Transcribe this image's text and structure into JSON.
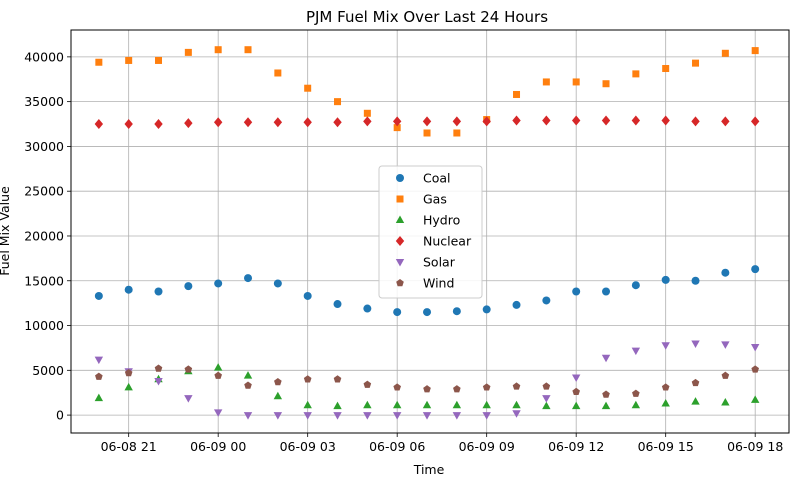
{
  "chart_data": {
    "type": "scatter",
    "title": "PJM Fuel Mix Over Last 24 Hours",
    "xlabel": "Time",
    "ylabel": "Fuel Mix Value",
    "x": [
      "2024-06-08 20:00",
      "2024-06-08 21:00",
      "2024-06-08 22:00",
      "2024-06-08 23:00",
      "2024-06-09 00:00",
      "2024-06-09 01:00",
      "2024-06-09 02:00",
      "2024-06-09 03:00",
      "2024-06-09 04:00",
      "2024-06-09 05:00",
      "2024-06-09 06:00",
      "2024-06-09 07:00",
      "2024-06-09 08:00",
      "2024-06-09 09:00",
      "2024-06-09 10:00",
      "2024-06-09 11:00",
      "2024-06-09 12:00",
      "2024-06-09 13:00",
      "2024-06-09 14:00",
      "2024-06-09 15:00",
      "2024-06-09 16:00",
      "2024-06-09 17:00",
      "2024-06-09 18:00"
    ],
    "xlim": [
      "2024-06-08 19:04",
      "2024-06-09 19:08"
    ],
    "xticks": [
      "2024-06-08 21:00",
      "2024-06-09 00:00",
      "2024-06-09 03:00",
      "2024-06-09 06:00",
      "2024-06-09 09:00",
      "2024-06-09 12:00",
      "2024-06-09 15:00",
      "2024-06-09 18:00"
    ],
    "xtick_labels": [
      "06-08 21",
      "06-09 00",
      "06-09 03",
      "06-09 06",
      "06-09 09",
      "06-09 12",
      "06-09 15",
      "06-09 18"
    ],
    "ylim": [
      -2000,
      43000
    ],
    "yticks": [
      0,
      5000,
      10000,
      15000,
      20000,
      25000,
      30000,
      35000,
      40000
    ],
    "ytick_labels": [
      "0",
      "5000",
      "10000",
      "15000",
      "20000",
      "25000",
      "30000",
      "35000",
      "40000"
    ],
    "grid": true,
    "legend_position": "center",
    "series": [
      {
        "name": "Coal",
        "color": "#1f77b4",
        "marker": "circle",
        "values": [
          13300,
          14000,
          13800,
          14400,
          14700,
          15300,
          14700,
          13300,
          12400,
          11900,
          11500,
          11500,
          11600,
          11800,
          12300,
          12800,
          13800,
          13800,
          14500,
          15100,
          15000,
          15900,
          16300
        ]
      },
      {
        "name": "Gas",
        "color": "#ff7f0e",
        "marker": "square",
        "values": [
          39400,
          39600,
          39600,
          40500,
          40800,
          40800,
          38200,
          36500,
          35000,
          33700,
          32100,
          31500,
          31500,
          33000,
          35800,
          37200,
          37200,
          37000,
          38100,
          38700,
          39300,
          40400,
          40700
        ]
      },
      {
        "name": "Hydro",
        "color": "#2ca02c",
        "marker": "triangle-up",
        "values": [
          1900,
          3100,
          4000,
          4900,
          5300,
          4400,
          2100,
          1100,
          1000,
          1100,
          1100,
          1100,
          1100,
          1100,
          1100,
          1000,
          1000,
          1000,
          1100,
          1300,
          1500,
          1400,
          1700
        ]
      },
      {
        "name": "Nuclear",
        "color": "#d62728",
        "marker": "diamond",
        "values": [
          32500,
          32500,
          32500,
          32600,
          32700,
          32700,
          32700,
          32700,
          32700,
          32800,
          32800,
          32800,
          32800,
          32800,
          32900,
          32900,
          32900,
          32900,
          32900,
          32900,
          32800,
          32800,
          32800
        ]
      },
      {
        "name": "Solar",
        "color": "#9467bd",
        "marker": "triangle-down",
        "values": [
          6200,
          4900,
          3800,
          1900,
          300,
          0,
          0,
          0,
          0,
          0,
          0,
          0,
          0,
          0,
          200,
          1900,
          4200,
          6400,
          7200,
          7800,
          8000,
          7900,
          7600
        ]
      },
      {
        "name": "Wind",
        "color": "#8c564b",
        "marker": "pentagon",
        "values": [
          4300,
          4700,
          5200,
          5100,
          4400,
          3300,
          3700,
          4000,
          4000,
          3400,
          3100,
          2900,
          2900,
          3100,
          3200,
          3200,
          2600,
          2300,
          2400,
          3100,
          3600,
          4400,
          5100
        ]
      }
    ]
  }
}
